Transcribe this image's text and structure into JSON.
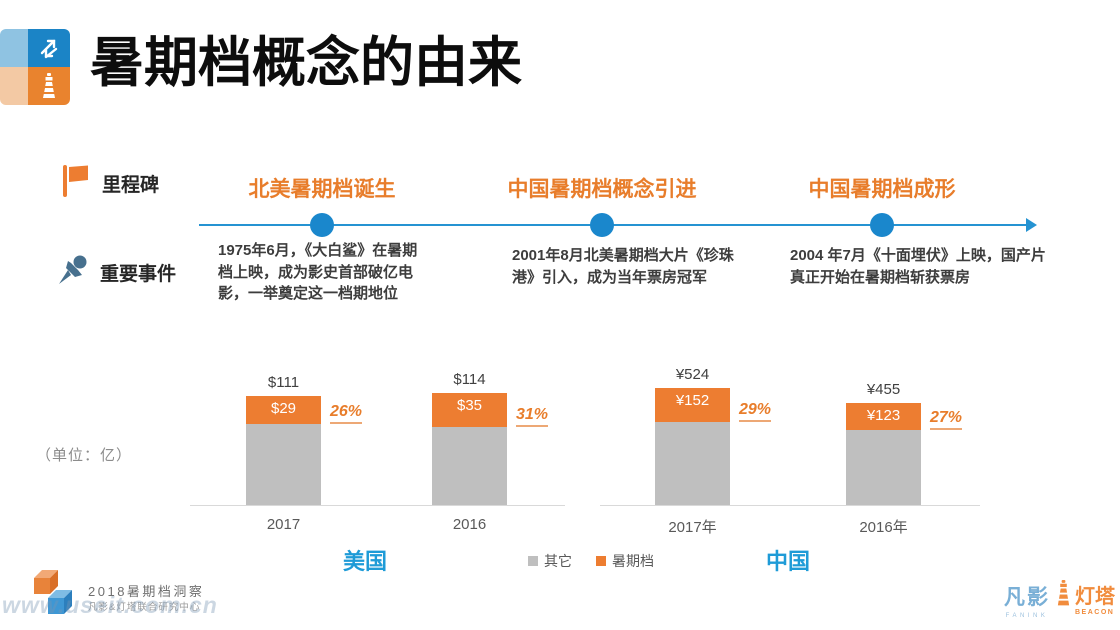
{
  "slide": {
    "title": "暑期档概念的由来",
    "unit_note": "（单位：亿）"
  },
  "timeline": {
    "row_labels": [
      {
        "icon": "flag-icon",
        "label": "里程碑"
      },
      {
        "icon": "pushpin-icon",
        "label": "重要事件"
      }
    ],
    "milestones": [
      {
        "title": "北美暑期档诞生",
        "event": "1975年6月，《大白鲨》在暑期档上映，成为影史首部破亿电影，一举奠定这一档期地位"
      },
      {
        "title": "中国暑期档概念引进",
        "event": "2001年8月北美暑期档大片《珍珠港》引入，成为当年票房冠军"
      },
      {
        "title": "中国暑期档成形",
        "event": "2004 年7月《十面埋伏》上映，国产片真正开始在暑期档斩获票房"
      }
    ]
  },
  "chart_data": [
    {
      "type": "bar",
      "stacked": true,
      "title": "美国",
      "categories": [
        "2017",
        "2016"
      ],
      "series": [
        {
          "name": "其它",
          "color": "#bfbfbf",
          "values": [
            82,
            79
          ]
        },
        {
          "name": "暑期档",
          "color": "#ed7d31",
          "values": [
            29,
            35
          ]
        }
      ],
      "totals": [
        111,
        114
      ],
      "total_labels": [
        "$111",
        "$114"
      ],
      "segment_labels": [
        "$29",
        "$35"
      ],
      "pct_labels": [
        "26%",
        "31%"
      ],
      "ylabel": "（单位：亿）",
      "legend_position": "bottom-center",
      "grid": false
    },
    {
      "type": "bar",
      "stacked": true,
      "title": "中国",
      "categories": [
        "2017年",
        "2016年"
      ],
      "series": [
        {
          "name": "其它",
          "color": "#bfbfbf",
          "values": [
            372,
            332
          ]
        },
        {
          "name": "暑期档",
          "color": "#ed7d31",
          "values": [
            152,
            123
          ]
        }
      ],
      "totals": [
        524,
        455
      ],
      "total_labels": [
        "¥524",
        "¥455"
      ],
      "segment_labels": [
        "¥152",
        "¥123"
      ],
      "pct_labels": [
        "29%",
        "27%"
      ],
      "ylabel": "（单位：亿）",
      "legend_position": "bottom-center",
      "grid": false
    }
  ],
  "legend": [
    {
      "label": "其它",
      "color": "#bfbfbf"
    },
    {
      "label": "暑期档",
      "color": "#ed7d31"
    }
  ],
  "footer": {
    "report_title": "2018暑期档洞察",
    "report_subtitle": "凡影&灯塔联合研究中心",
    "watermark": "www.useit.com.cn",
    "logo_fanink": {
      "name": "凡影",
      "sub": "FANINK"
    },
    "logo_beacon": {
      "name": "灯塔",
      "sub": "BEACON"
    }
  },
  "colors": {
    "accent_orange": "#ed7d31",
    "bar_gray": "#bfbfbf",
    "timeline_blue": "#2593d2",
    "dot_blue": "#1a87cc",
    "country_blue": "#1e9bd7",
    "axis_gray": "#d9d9d9"
  }
}
